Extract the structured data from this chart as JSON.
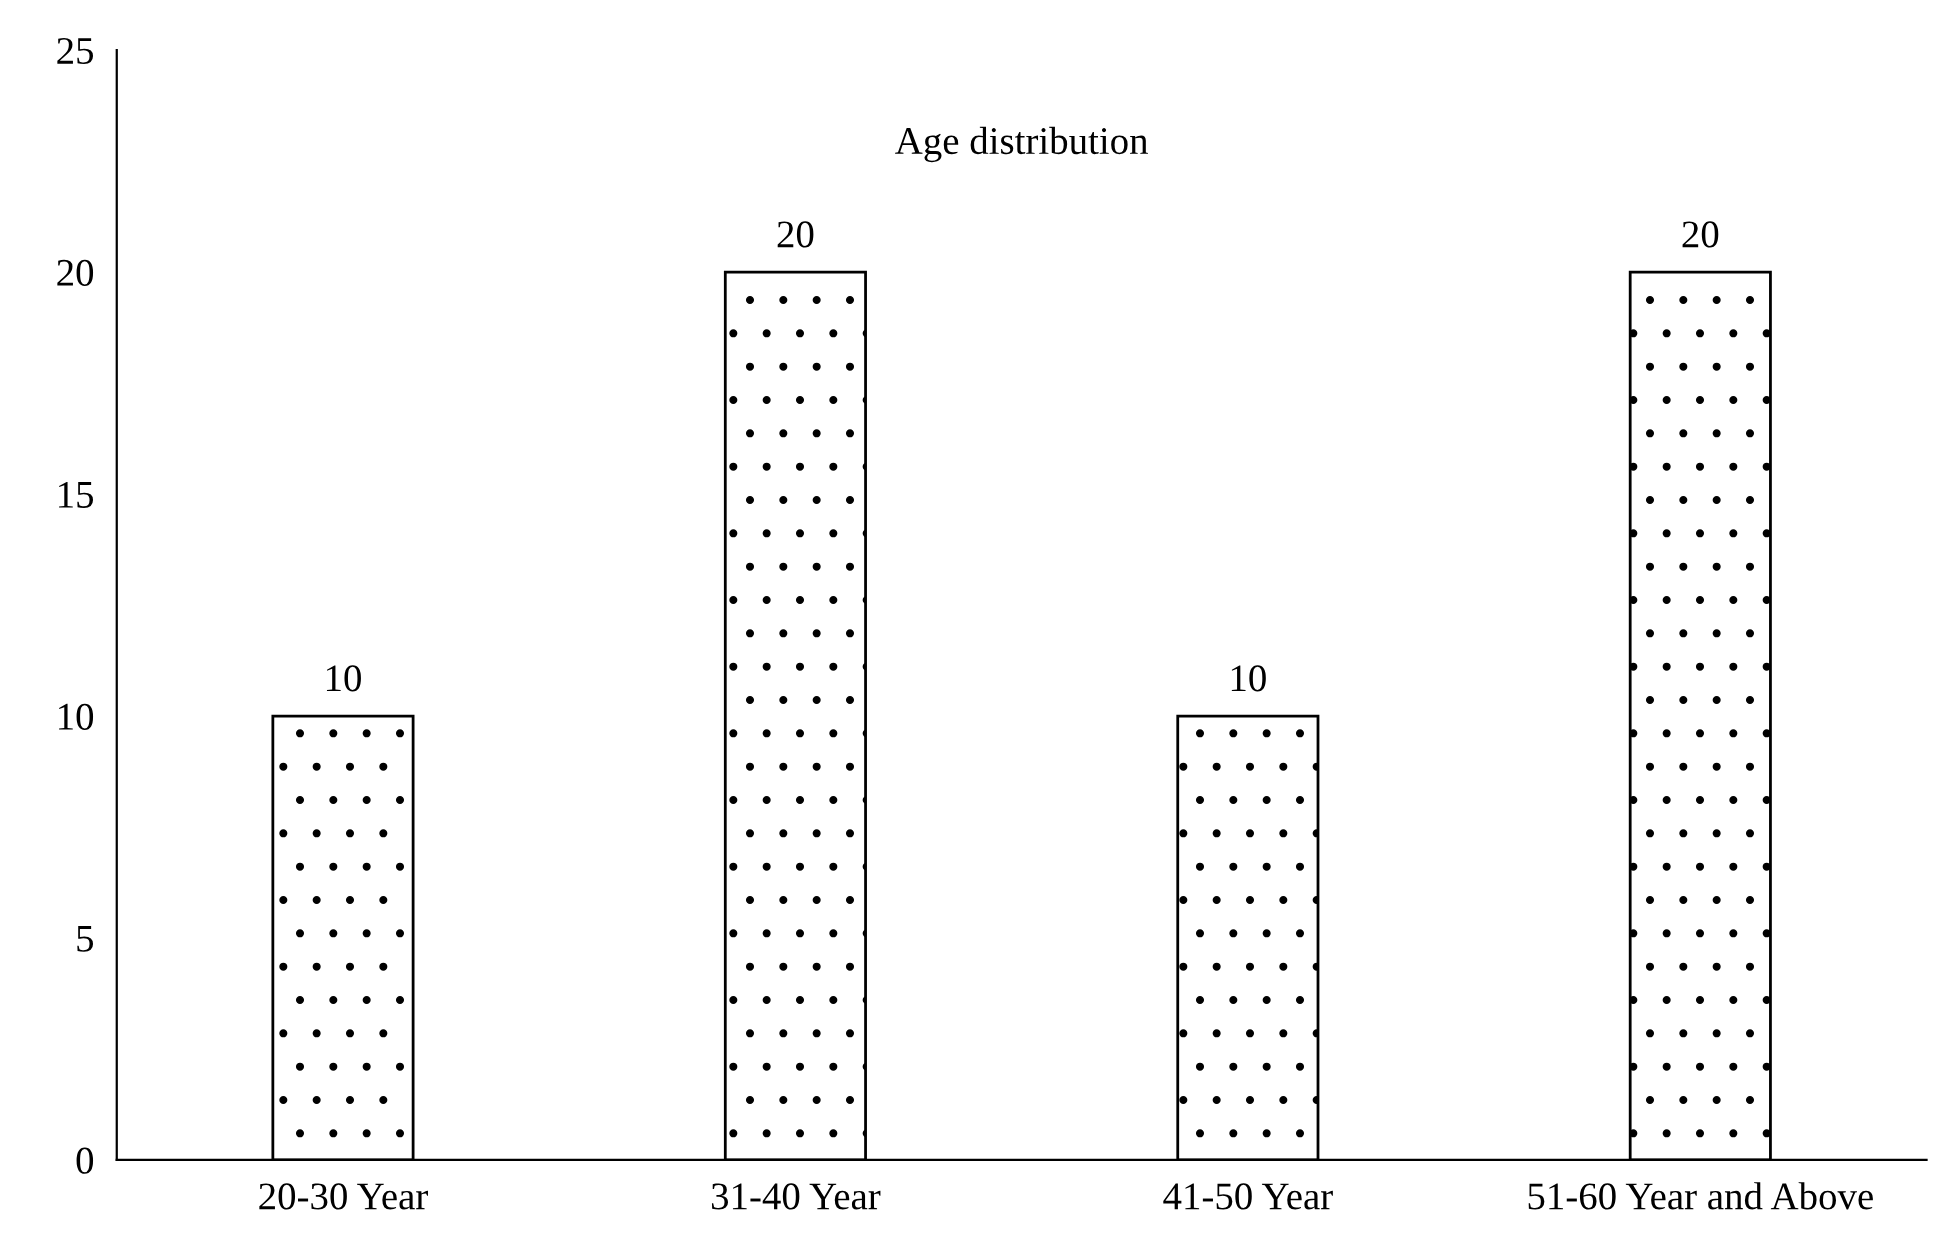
{
  "chart_data": {
    "type": "bar",
    "title": "Age distribution",
    "categories": [
      "20-30 Year",
      "31-40 Year",
      "41-50 Year",
      "51-60 Year and Above"
    ],
    "values": [
      10,
      20,
      10,
      20
    ],
    "ylim": [
      0,
      25
    ],
    "yticks": [
      0,
      5,
      10,
      15,
      20,
      25
    ],
    "grid": false,
    "data_labels": true
  }
}
